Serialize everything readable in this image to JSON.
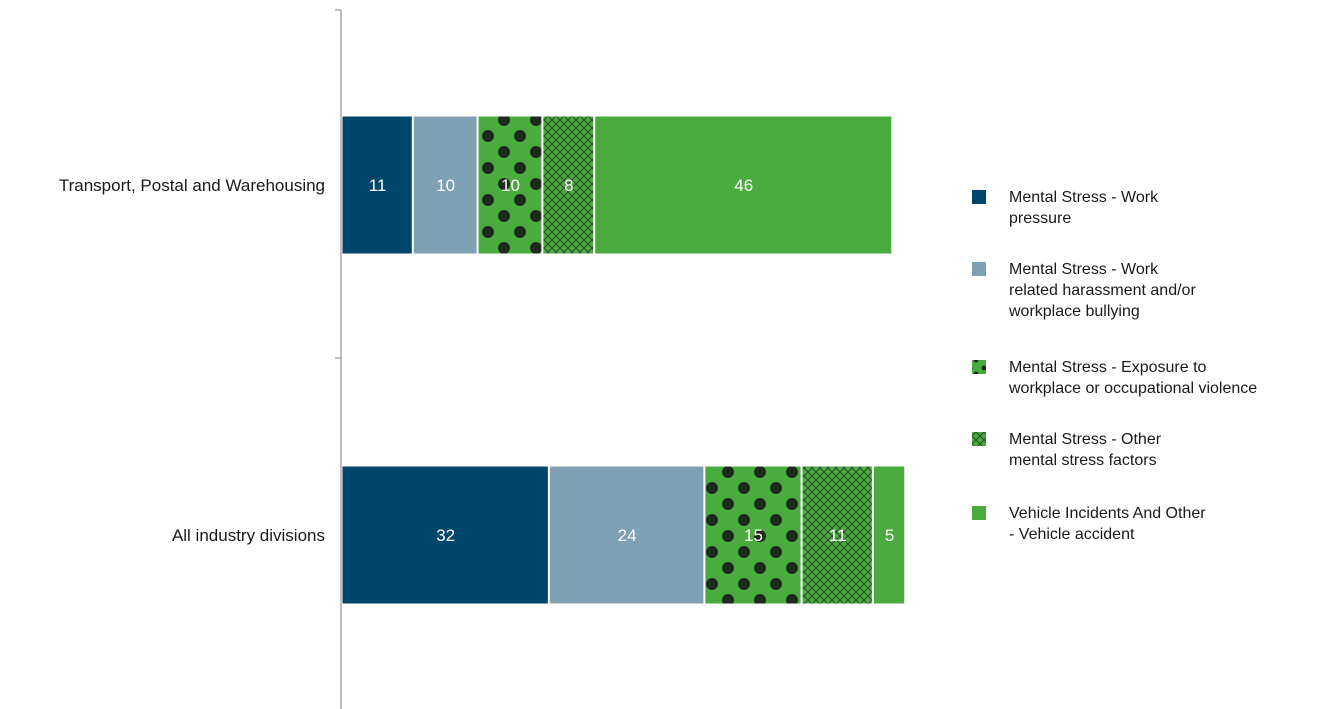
{
  "chart_data": {
    "type": "bar",
    "orientation": "horizontal",
    "stacked": true,
    "title": "",
    "xlabel": "",
    "ylabel": "",
    "categories": [
      "Transport, Postal and Warehousing",
      "All industry divisions"
    ],
    "series": [
      {
        "name": "Mental Stress - Work pressure",
        "legend_lines": [
          "Mental Stress - Work",
          "pressure"
        ],
        "color": "#00466b",
        "pattern": "solid",
        "values": [
          11,
          32
        ]
      },
      {
        "name": "Mental Stress - Work related harassment and/or workplace bullying",
        "legend_lines": [
          "Mental Stress - Work",
          "related harassment and/or",
          "workplace bullying"
        ],
        "color": "#7fa1b5",
        "pattern": "solid",
        "values": [
          10,
          24
        ]
      },
      {
        "name": "Mental Stress - Exposure to workplace or occupational violence",
        "legend_lines": [
          "Mental Stress - Exposure to",
          "workplace or occupational violence"
        ],
        "color": "#4aab3e",
        "pattern": "dots",
        "values": [
          10,
          15
        ]
      },
      {
        "name": "Mental Stress - Other mental stress factors",
        "legend_lines": [
          "Mental Stress - Other",
          "mental stress factors"
        ],
        "color": "#4aab3e",
        "pattern": "crosshatch",
        "values": [
          8,
          11
        ]
      },
      {
        "name": "Vehicle Incidents And Other - Vehicle accident",
        "legend_lines": [
          "Vehicle Incidents And Other",
          "- Vehicle accident"
        ],
        "color": "#4aab3e",
        "pattern": "solid",
        "values": [
          46,
          5
        ]
      }
    ],
    "data_labels": true,
    "grid": false,
    "legend_position": "right"
  }
}
